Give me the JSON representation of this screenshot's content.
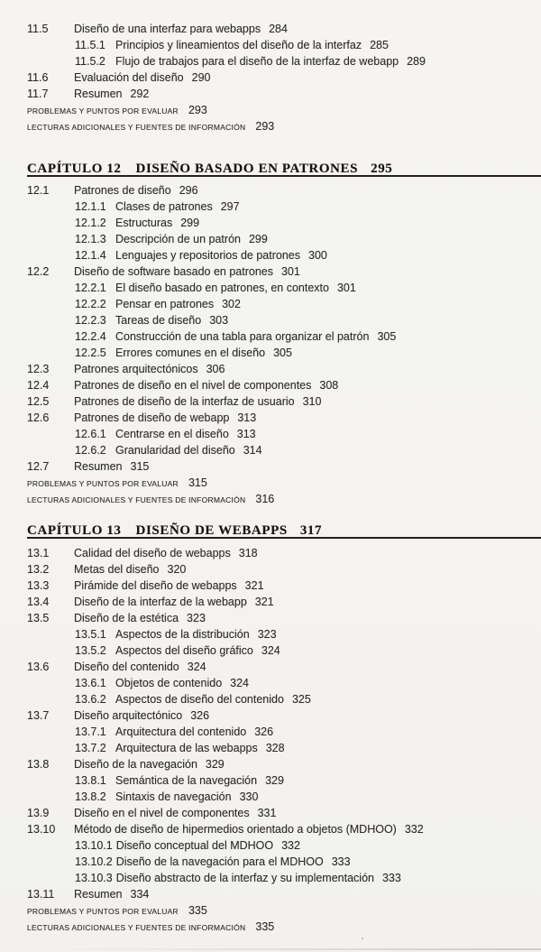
{
  "colors": {
    "background": "#f4f3f1",
    "body_text": "#2e2d2b",
    "heading_text": "#161412",
    "heading_rule": "#21201d"
  },
  "toc": {
    "sections": [
      {
        "items": [
          {
            "level": "section",
            "num": "11.5",
            "title": "Diseño de una interfaz para webapps",
            "page": "284"
          },
          {
            "level": "subsection",
            "num": "11.5.1",
            "title": "Principios y lineamientos del diseño de la interfaz",
            "page": "285"
          },
          {
            "level": "subsection",
            "num": "11.5.2",
            "title": "Flujo de trabajos para el diseño de la interfaz de webapp",
            "page": "289"
          },
          {
            "level": "section",
            "num": "11.6",
            "title": "Evaluación del diseño",
            "page": "290"
          },
          {
            "level": "section",
            "num": "11.7",
            "title": "Resumen",
            "page": "292"
          },
          {
            "level": "backmatter",
            "title": "PROBLEMAS Y PUNTOS POR EVALUAR",
            "page": "293"
          },
          {
            "level": "backmatter",
            "title": "LECTURAS ADICIONALES Y FUENTES DE INFORMACIÓN",
            "page": "293"
          }
        ]
      },
      {
        "label": "CAPÍTULO 12",
        "title": "DISEÑO BASADO EN PATRONES",
        "page": "295",
        "items": [
          {
            "level": "section",
            "num": "12.1",
            "title": "Patrones de diseño",
            "page": "296"
          },
          {
            "level": "subsection",
            "num": "12.1.1",
            "title": "Clases de patrones",
            "page": "297"
          },
          {
            "level": "subsection",
            "num": "12.1.2",
            "title": "Estructuras",
            "page": "299"
          },
          {
            "level": "subsection",
            "num": "12.1.3",
            "title": "Descripción de un patrón",
            "page": "299"
          },
          {
            "level": "subsection",
            "num": "12.1.4",
            "title": "Lenguajes y repositorios de patrones",
            "page": "300"
          },
          {
            "level": "section",
            "num": "12.2",
            "title": "Diseño de software basado en patrones",
            "page": "301"
          },
          {
            "level": "subsection",
            "num": "12.2.1",
            "title": "El diseño basado en patrones, en contexto",
            "page": "301"
          },
          {
            "level": "subsection",
            "num": "12.2.2",
            "title": "Pensar en patrones",
            "page": "302"
          },
          {
            "level": "subsection",
            "num": "12.2.3",
            "title": "Tareas de diseño",
            "page": "303"
          },
          {
            "level": "subsection",
            "num": "12.2.4",
            "title": "Construcción de una tabla para organizar el patrón",
            "page": "305"
          },
          {
            "level": "subsection",
            "num": "12.2.5",
            "title": "Errores comunes en el diseño",
            "page": "305"
          },
          {
            "level": "section",
            "num": "12.3",
            "title": "Patrones arquitectónicos",
            "page": "306"
          },
          {
            "level": "section",
            "num": "12.4",
            "title": "Patrones de diseño en el nivel de componentes",
            "page": "308"
          },
          {
            "level": "section",
            "num": "12.5",
            "title": "Patrones de diseño de la interfaz de usuario",
            "page": "310"
          },
          {
            "level": "section",
            "num": "12.6",
            "title": "Patrones de diseño de webapp",
            "page": "313"
          },
          {
            "level": "subsection",
            "num": "12.6.1",
            "title": "Centrarse en el diseño",
            "page": "313"
          },
          {
            "level": "subsection",
            "num": "12.6.2",
            "title": "Granularidad del diseño",
            "page": "314"
          },
          {
            "level": "section",
            "num": "12.7",
            "title": "Resumen",
            "page": "315"
          },
          {
            "level": "backmatter",
            "title": "PROBLEMAS Y PUNTOS POR EVALUAR",
            "page": "315"
          },
          {
            "level": "backmatter",
            "title": "LECTURAS ADICIONALES Y FUENTES DE INFORMACIÓN",
            "page": "316"
          }
        ]
      },
      {
        "label": "CAPÍTULO 13",
        "title": "DISEÑO DE WEBAPPS",
        "page": "317",
        "items": [
          {
            "level": "section",
            "num": "13.1",
            "title": "Calidad del diseño de webapps",
            "page": "318"
          },
          {
            "level": "section",
            "num": "13.2",
            "title": "Metas del diseño",
            "page": "320"
          },
          {
            "level": "section",
            "num": "13.3",
            "title": "Pirámide del diseño de webapps",
            "page": "321"
          },
          {
            "level": "section",
            "num": "13.4",
            "title": "Diseño de la interfaz de la webapp",
            "page": "321"
          },
          {
            "level": "section",
            "num": "13.5",
            "title": "Diseño de la estética",
            "page": "323"
          },
          {
            "level": "subsection",
            "num": "13.5.1",
            "title": "Aspectos de la distribución",
            "page": "323"
          },
          {
            "level": "subsection",
            "num": "13.5.2",
            "title": "Aspectos del diseño gráfico",
            "page": "324"
          },
          {
            "level": "section",
            "num": "13.6",
            "title": "Diseño del contenido",
            "page": "324"
          },
          {
            "level": "subsection",
            "num": "13.6.1",
            "title": "Objetos de contenido",
            "page": "324"
          },
          {
            "level": "subsection",
            "num": "13.6.2",
            "title": "Aspectos de diseño del contenido",
            "page": "325"
          },
          {
            "level": "section",
            "num": "13.7",
            "title": "Diseño arquitectónico",
            "page": "326"
          },
          {
            "level": "subsection",
            "num": "13.7.1",
            "title": "Arquitectura del contenido",
            "page": "326"
          },
          {
            "level": "subsection",
            "num": "13.7.2",
            "title": "Arquitectura de las webapps",
            "page": "328"
          },
          {
            "level": "section",
            "num": "13.8",
            "title": "Diseño de la navegación",
            "page": "329"
          },
          {
            "level": "subsection",
            "num": "13.8.1",
            "title": "Semántica de la navegación",
            "page": "329"
          },
          {
            "level": "subsection",
            "num": "13.8.2",
            "title": "Sintaxis de navegación",
            "page": "330"
          },
          {
            "level": "section",
            "num": "13.9",
            "title": "Diseño en el nivel de componentes",
            "page": "331"
          },
          {
            "level": "section",
            "num": "13.10",
            "title": "Método de diseño de hipermedios orientado a objetos (MDHOO)",
            "page": "332"
          },
          {
            "level": "subsection",
            "num": "13.10.1",
            "title": "Diseño conceptual del MDHOO",
            "page": "332"
          },
          {
            "level": "subsection",
            "num": "13.10.2",
            "title": "Diseño de la navegación para el MDHOO",
            "page": "333"
          },
          {
            "level": "subsection",
            "num": "13.10.3",
            "title": "Diseño abstracto de la interfaz y su implementación",
            "page": "333"
          },
          {
            "level": "section",
            "num": "13.11",
            "title": "Resumen",
            "page": "334"
          },
          {
            "level": "backmatter",
            "title": "PROBLEMAS Y PUNTOS POR EVALUAR",
            "page": "335"
          },
          {
            "level": "backmatter",
            "title": "LECTURAS ADICIONALES Y FUENTES DE INFORMACIÓN",
            "page": "335"
          }
        ]
      }
    ]
  }
}
